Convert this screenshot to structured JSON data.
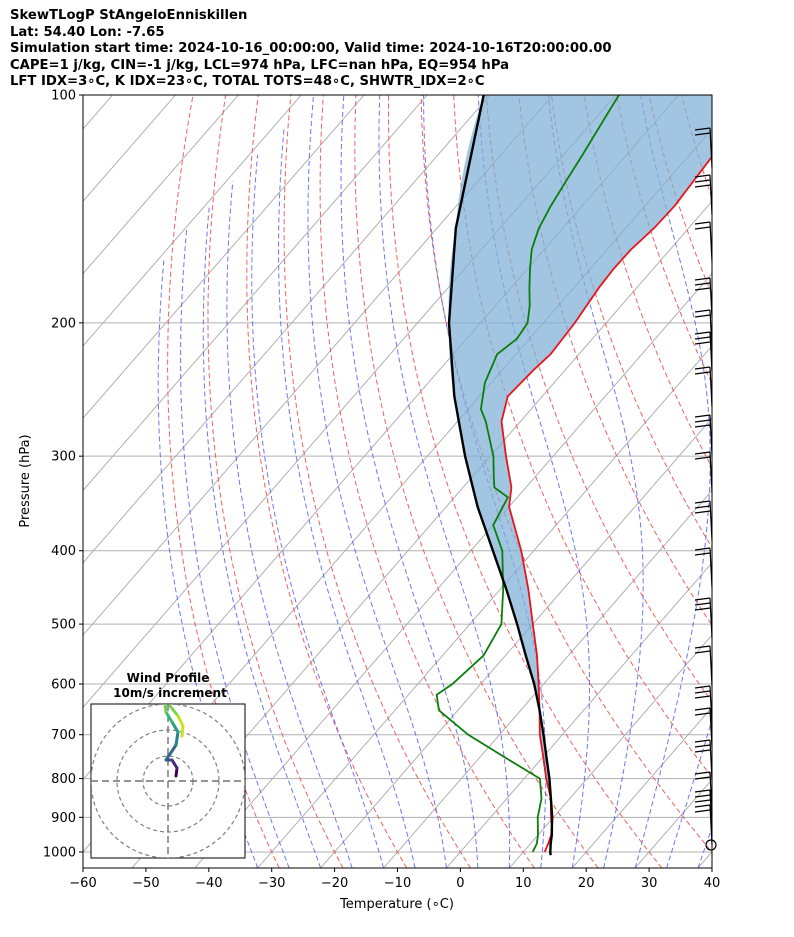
{
  "header": {
    "line1": "SkewTLogP StAngeloEnniskillen",
    "line2": "Lat: 54.40   Lon: -7.65",
    "line3": "Simulation start time: 2024-10-16_00:00:00, Valid time: 2024-10-16T20:00:00.00",
    "line4": "CAPE=1 j/kg, CIN=-1 j/kg, LCL=974 hPa, LFC=nan hPa, EQ=954 hPa",
    "line5": "LFT IDX=3∘C, K IDX=23∘C, TOTAL TOTS=48∘C, SHWTR_IDX=2∘C"
  },
  "chart_data": {
    "type": "skewt-logp",
    "xlabel": "Temperature (∘C)",
    "ylabel": "Pressure (hPa)",
    "xlim": [
      -60,
      40
    ],
    "ylim": [
      1050,
      100
    ],
    "x_ticks": [
      -60,
      -50,
      -40,
      -30,
      -20,
      -10,
      0,
      10,
      20,
      30,
      40
    ],
    "x_tick_labels": [
      "−60",
      "−50",
      "−40",
      "−30",
      "−20",
      "−10",
      "0",
      "10",
      "20",
      "30",
      "40"
    ],
    "y_ticks": [
      1000,
      900,
      800,
      700,
      600,
      500,
      400,
      300,
      200,
      100
    ],
    "y_tick_labels": [
      "1000",
      "900",
      "800",
      "700",
      "600",
      "500",
      "400",
      "300",
      "200",
      "100"
    ],
    "series": [
      {
        "name": "temperature",
        "color": "#e8141a",
        "points": [
          [
            1000,
            13.4
          ],
          [
            975,
            12.8
          ],
          [
            950,
            12.1
          ],
          [
            925,
            11.0
          ],
          [
            900,
            9.6
          ],
          [
            850,
            7.0
          ],
          [
            800,
            3.5
          ],
          [
            750,
            0.1
          ],
          [
            700,
            -3.6
          ],
          [
            650,
            -7.0
          ],
          [
            600,
            -10.8
          ],
          [
            550,
            -15.0
          ],
          [
            500,
            -20.0
          ],
          [
            450,
            -25.5
          ],
          [
            400,
            -32.0
          ],
          [
            350,
            -40.0
          ],
          [
            330,
            -42.3
          ],
          [
            300,
            -47.5
          ],
          [
            270,
            -53.0
          ],
          [
            250,
            -55.5
          ],
          [
            230,
            -55.0
          ],
          [
            220,
            -54.5
          ],
          [
            200,
            -55.0
          ],
          [
            180,
            -56.0
          ],
          [
            170,
            -56.3
          ],
          [
            160,
            -56.2
          ],
          [
            150,
            -55.5
          ],
          [
            140,
            -55.3
          ],
          [
            120,
            -56.2
          ],
          [
            110,
            -57.5
          ],
          [
            100,
            -59.0
          ]
        ]
      },
      {
        "name": "dewpoint",
        "color": "#0a7d0a",
        "points": [
          [
            1000,
            11.5
          ],
          [
            975,
            11.0
          ],
          [
            950,
            10.0
          ],
          [
            900,
            7.5
          ],
          [
            850,
            5.5
          ],
          [
            800,
            2.5
          ],
          [
            750,
            -6.0
          ],
          [
            700,
            -15.0
          ],
          [
            650,
            -23.0
          ],
          [
            620,
            -25.5
          ],
          [
            600,
            -24.5
          ],
          [
            550,
            -23.5
          ],
          [
            500,
            -25.0
          ],
          [
            450,
            -29.5
          ],
          [
            400,
            -35.0
          ],
          [
            370,
            -40.0
          ],
          [
            340,
            -41.5
          ],
          [
            330,
            -45.0
          ],
          [
            320,
            -46.5
          ],
          [
            300,
            -49.5
          ],
          [
            270,
            -55.5
          ],
          [
            260,
            -58.0
          ],
          [
            240,
            -61.0
          ],
          [
            220,
            -63.0
          ],
          [
            210,
            -62.0
          ],
          [
            200,
            -62.5
          ],
          [
            190,
            -64.5
          ],
          [
            180,
            -67.0
          ],
          [
            170,
            -69.5
          ],
          [
            160,
            -72.0
          ],
          [
            150,
            -73.8
          ],
          [
            140,
            -75.0
          ],
          [
            130,
            -76.0
          ],
          [
            120,
            -77.0
          ],
          [
            110,
            -78.2
          ],
          [
            100,
            -79.5
          ]
        ]
      },
      {
        "name": "parcel",
        "color": "#000000",
        "points": [
          [
            1010,
            14.8
          ],
          [
            1000,
            14.3
          ],
          [
            975,
            13.2
          ],
          [
            950,
            12.2
          ],
          [
            925,
            11.0
          ],
          [
            900,
            9.8
          ],
          [
            850,
            7.0
          ],
          [
            800,
            4.0
          ],
          [
            750,
            0.6
          ],
          [
            700,
            -3.0
          ],
          [
            650,
            -7.0
          ],
          [
            600,
            -11.5
          ],
          [
            550,
            -16.8
          ],
          [
            500,
            -22.5
          ],
          [
            450,
            -29.0
          ],
          [
            400,
            -36.5
          ],
          [
            350,
            -45.0
          ],
          [
            300,
            -54.0
          ],
          [
            250,
            -64.0
          ],
          [
            200,
            -75.0
          ],
          [
            150,
            -87.0
          ],
          [
            100,
            -101.0
          ]
        ]
      }
    ],
    "wind_profile_inset": {
      "title": "Wind Profile",
      "subtitle": "10m/s increment"
    }
  }
}
